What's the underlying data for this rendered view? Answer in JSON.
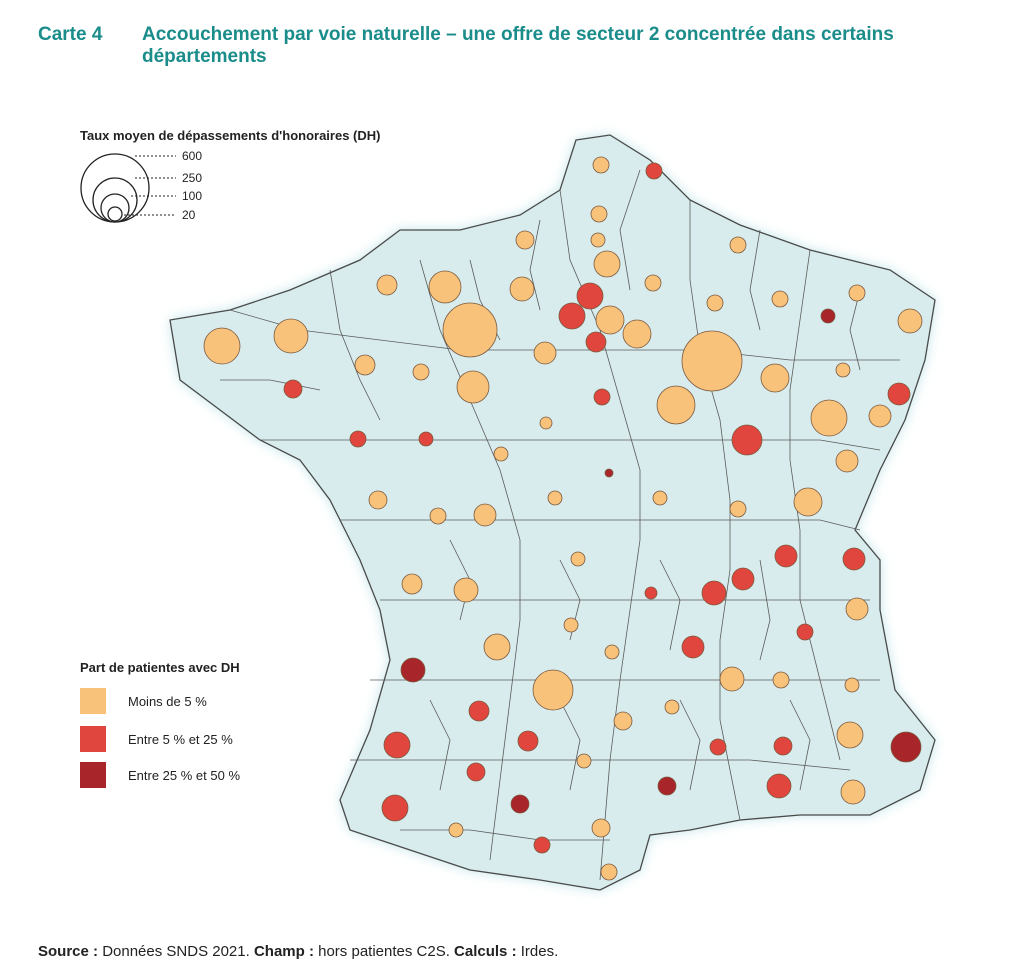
{
  "title": {
    "number": "Carte 4",
    "text": "Accouchement par voie naturelle – une offre de secteur 2 concentrée dans certains départements"
  },
  "size_legend": {
    "title": "Taux moyen de dépassements d'honoraires (DH)",
    "ticks": [
      "600",
      "250",
      "100",
      "20"
    ]
  },
  "color_legend": {
    "title": "Part de patientes avec DH",
    "items": [
      {
        "label": "Moins de 5 %",
        "color": "#f8c27a"
      },
      {
        "label": "Entre 5 % et 25 %",
        "color": "#e0463e"
      },
      {
        "label": "Entre 25 % et 50 %",
        "color": "#a8262a"
      }
    ]
  },
  "colors": {
    "land": "#d9eced",
    "border": "#4a4a4a",
    "accent": "#1a8c8a"
  },
  "footer": {
    "source_label": "Source :",
    "source_text": "Données SNDS 2021.",
    "champ_label": "Champ :",
    "champ_text": "hors patientes C2S.",
    "calculs_label": "Calculs :",
    "calculs_text": "Irdes."
  }
}
